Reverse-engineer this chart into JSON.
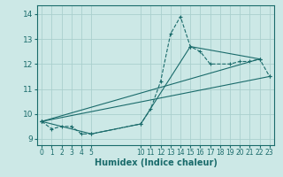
{
  "xlabel": "Humidex (Indice chaleur)",
  "bg_color": "#cce8e6",
  "line_color": "#1a6b6b",
  "grid_color": "#aacfcd",
  "lines": [
    {
      "x": [
        0,
        1,
        2,
        3,
        4,
        5,
        10,
        11,
        12,
        13,
        14,
        15,
        16,
        17,
        19,
        20,
        21,
        22,
        23
      ],
      "y": [
        9.7,
        9.4,
        9.5,
        9.5,
        9.2,
        9.2,
        9.6,
        10.2,
        11.3,
        13.2,
        13.9,
        12.7,
        12.5,
        12.0,
        12.0,
        12.1,
        12.1,
        12.2,
        11.5
      ],
      "style": "--"
    },
    {
      "x": [
        0,
        22
      ],
      "y": [
        9.7,
        12.2
      ],
      "style": "-"
    },
    {
      "x": [
        0,
        5,
        10,
        15,
        22
      ],
      "y": [
        9.7,
        9.2,
        9.6,
        12.7,
        12.2
      ],
      "style": "-"
    },
    {
      "x": [
        0,
        23
      ],
      "y": [
        9.7,
        11.5
      ],
      "style": "-"
    }
  ],
  "xlim": [
    -0.5,
    23.5
  ],
  "ylim": [
    8.75,
    14.35
  ],
  "xticks": [
    0,
    1,
    2,
    3,
    4,
    5,
    10,
    11,
    12,
    13,
    14,
    15,
    16,
    17,
    18,
    19,
    20,
    21,
    22,
    23
  ],
  "yticks": [
    9,
    10,
    11,
    12,
    13,
    14
  ],
  "xlabel_fontsize": 7,
  "tick_fontsize": 5.5,
  "ytick_fontsize": 6.5
}
